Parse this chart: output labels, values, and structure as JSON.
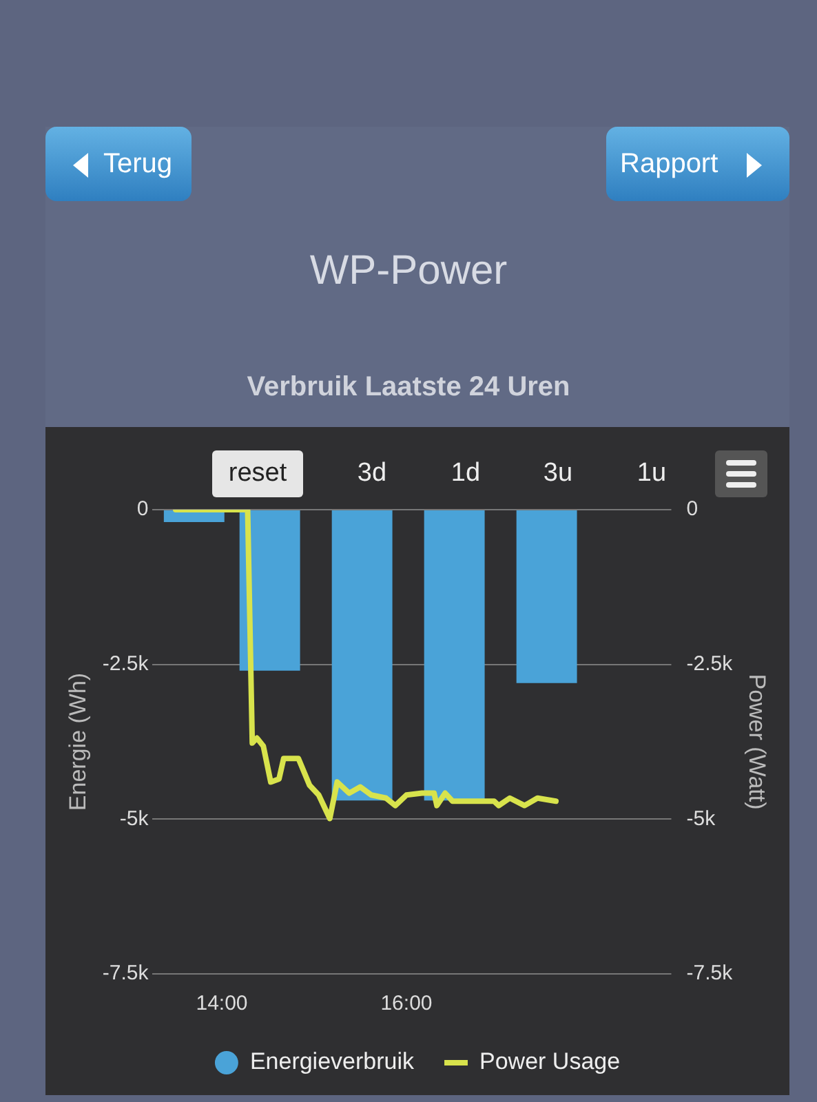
{
  "chart_data": {
    "type": "bar",
    "title": "WP-Power",
    "subtitle": "Verbruik Laatste 24 Uren",
    "ylabel": "Energie (Wh)",
    "y2label": "Power (Watt)",
    "annotations": [
      "Terug",
      "Rapport",
      "reset",
      "3d",
      "1d",
      "3u",
      "1u"
    ],
    "xlim": [
      13.25,
      18.87
    ],
    "xticks": [
      {
        "value": 14,
        "label": "14:00"
      },
      {
        "value": 16,
        "label": "16:00"
      }
    ],
    "ylim": [
      -7500,
      0
    ],
    "yticks": [
      {
        "value": -7500,
        "label": "-7.5k"
      },
      {
        "value": -5000,
        "label": "-5k"
      },
      {
        "value": -2500,
        "label": "-2.5k"
      },
      0
    ],
    "y2lim": [
      -7500,
      0
    ],
    "y2ticks": [
      {
        "value": -7500,
        "label": "-7.5k"
      },
      {
        "value": -5000,
        "label": "-5k"
      },
      {
        "value": -2500,
        "label": "-2.5k"
      },
      0
    ],
    "grid": "y",
    "legend": "bottom",
    "series": [
      {
        "name": "Energieverbruik",
        "color": "#4aa3d8",
        "x": [
          13.7,
          14.52,
          15.52,
          16.52,
          17.52
        ],
        "values": [
          -200,
          -2600,
          -4700,
          -4700,
          -2800
        ]
      },
      {
        "name": "Power Usage",
        "type": "line",
        "axis": "y2",
        "color": "#d8e34c",
        "marker": "none",
        "x": [
          13.5,
          14.28,
          14.33,
          14.38,
          14.45,
          14.53,
          14.62,
          14.67,
          14.83,
          14.95,
          15.05,
          15.17,
          15.25,
          15.38,
          15.5,
          15.62,
          15.78,
          15.88,
          16.0,
          16.17,
          16.3,
          16.33,
          16.42,
          16.5,
          16.95,
          17.0,
          17.12,
          17.28,
          17.42,
          17.62
        ],
        "values": [
          0,
          0,
          -3770,
          -3690,
          -3820,
          -4400,
          -4350,
          -4020,
          -4020,
          -4450,
          -4610,
          -4990,
          -4400,
          -4580,
          -4480,
          -4610,
          -4660,
          -4780,
          -4610,
          -4580,
          -4580,
          -4780,
          -4580,
          -4710,
          -4710,
          -4780,
          -4660,
          -4780,
          -4660,
          -4710
        ]
      }
    ]
  }
}
